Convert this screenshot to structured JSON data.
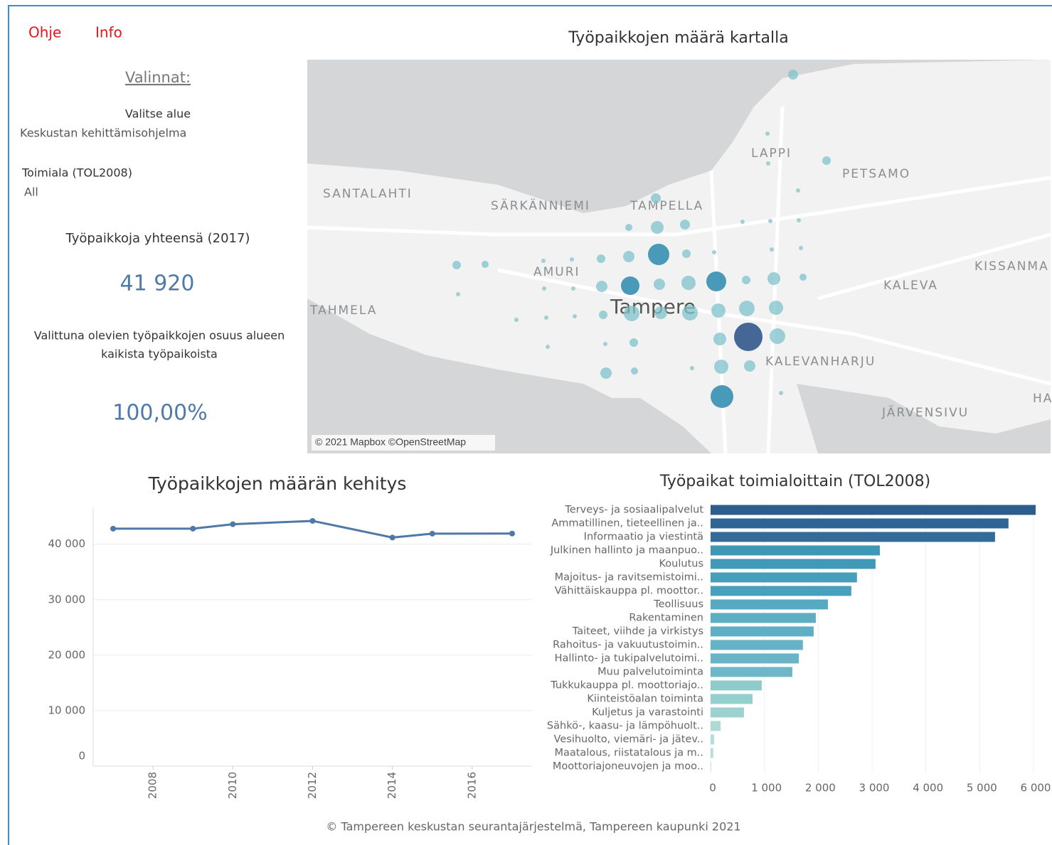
{
  "header": {
    "links": [
      "Ohje",
      "Info"
    ]
  },
  "sidebar": {
    "heading": "Valinnat:",
    "area_label": "Valitse alue",
    "area_value": "Keskustan kehittämisohjelma",
    "industry_label": "Toimiala (TOL2008)",
    "industry_value": "All",
    "total_label": "Työpaikkoja yhteensä (2017)",
    "total_value": "41 920",
    "share_label": [
      "Valittuna olevien työpaikkojen osuus alueen",
      "kaikista työpaikoista"
    ],
    "share_value": "100,00%"
  },
  "map": {
    "title": "Työpaikkojen määrä kartalla",
    "places": [
      "LAPPI",
      "PETSAMO",
      "SANTALAHTI",
      "SÄRKÄNNIEMI",
      "TAMPELLA",
      "AMURI",
      "KISSANMA",
      "KALEVA",
      "TAHMELA",
      "Tampere",
      "KALEVANHARJU",
      "JÄRVENSIVU",
      "HA"
    ],
    "attribution": "© 2021 Mapbox ©OpenStreetMap"
  },
  "chart_data": [
    {
      "type": "line",
      "title": "Työpaikkojen määrän kehitys",
      "x": [
        2007,
        2009,
        2010,
        2012,
        2014,
        2015,
        2017
      ],
      "series": [
        {
          "name": "Työpaikat",
          "color": "#4e79a7",
          "values": [
            42800,
            42800,
            43600,
            44200,
            41200,
            41900,
            41920
          ]
        }
      ],
      "xlim": [
        2006.5,
        2017.5
      ],
      "xticks": [
        2008,
        2010,
        2012,
        2014,
        2016
      ],
      "ylim": [
        0,
        46500
      ],
      "yticks": [
        0,
        {
          "value": 10000,
          "label": "10 000"
        },
        {
          "value": 20000,
          "label": "20 000"
        },
        {
          "value": 30000,
          "label": "30 000"
        },
        {
          "value": 40000,
          "label": "40 000"
        }
      ],
      "grid": true
    },
    {
      "type": "hbar",
      "title": "Työpaikat toimialoittain (TOL2008)",
      "categories": [
        "Terveys- ja sosiaalipalvelut",
        "Ammatillinen, tieteellinen ja..",
        "Informaatio ja viestintä",
        "Julkinen hallinto ja maanpuo..",
        "Koulutus",
        "Majoitus- ja ravitsemistoimi..",
        "Vähittäiskauppa pl. moottor..",
        "Teollisuus",
        "Rakentaminen",
        "Taiteet, viihde ja virkistys",
        "Rahoitus- ja vakuutustoimin..",
        "Hallinto- ja tukipalvelutoimi..",
        "Muu palvelutoiminta",
        "Tukkukauppa pl. moottoriajo..",
        "Kiinteistöalan toiminta",
        "Kuljetus ja varastointi",
        "Sähkö-, kaasu- ja lämpöhuolt..",
        "Vesihuolto, viemäri- ja jätev..",
        "Maatalous, riistatalous ja m..",
        "Moottoriajoneuvojen ja moo.."
      ],
      "values": [
        6040,
        5535,
        5285,
        3145,
        3065,
        2720,
        2615,
        2180,
        1955,
        1915,
        1715,
        1640,
        1520,
        950,
        780,
        620,
        185,
        65,
        50,
        10
      ],
      "colors": [
        "#2c5d8c",
        "#2f6593",
        "#336c98",
        "#3f97b5",
        "#4199b7",
        "#469fbb",
        "#48a1bc",
        "#55a9c1",
        "#5daec3",
        "#5fafc4",
        "#66b3c6",
        "#69b5c7",
        "#6db7c8",
        "#8ecccc",
        "#95cfcd",
        "#9bd2cf",
        "#acdad5",
        "#b3ddd7",
        "#b4ddd8",
        "#b7dfd9"
      ],
      "xlim": [
        0,
        6000
      ],
      "xticks": [
        0,
        {
          "value": 1000,
          "label": "1 000"
        },
        {
          "value": 2000,
          "label": "2 000"
        },
        {
          "value": 3000,
          "label": "3 000"
        },
        {
          "value": 4000,
          "label": "4 000"
        },
        {
          "value": 5000,
          "label": "5 000"
        },
        {
          "value": 6000,
          "label": "6 000"
        }
      ],
      "grid": true
    }
  ],
  "footer": "© Tampereen keskustan seurantajärjestelmä, Tampereen kaupunki 2021"
}
